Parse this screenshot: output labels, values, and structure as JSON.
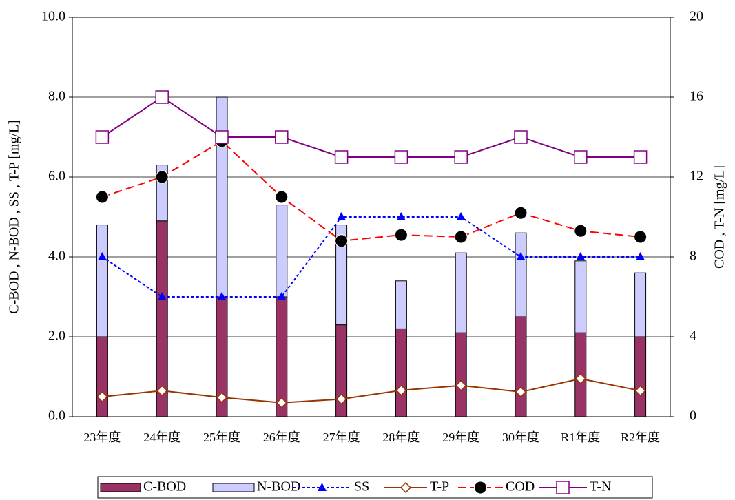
{
  "chart_data": {
    "type": "bar",
    "categories": [
      "23年度",
      "24年度",
      "25年度",
      "26年度",
      "27年度",
      "28年度",
      "29年度",
      "30年度",
      "R1年度",
      "R2年度"
    ],
    "ylabel": "C-BOD , N-BOD , SS , T-P [mg/L]",
    "y2label": "COD , T-N [mg/L]",
    "ylim": [
      0,
      10
    ],
    "yticks": [
      {
        "value": 0,
        "label": "0.0"
      },
      {
        "value": 2,
        "label": "2.0"
      },
      {
        "value": 4,
        "label": "4.0"
      },
      {
        "value": 6,
        "label": "6.0"
      },
      {
        "value": 8,
        "label": "8.0"
      },
      {
        "value": 10,
        "label": "10.0"
      }
    ],
    "y2lim": [
      0,
      20
    ],
    "y2ticks": [
      0,
      4,
      8,
      12,
      16,
      20
    ],
    "grid": true,
    "legend": "bottom",
    "series": [
      {
        "name": "C-BOD",
        "type": "bar",
        "color": "#993366",
        "values": [
          2.0,
          4.9,
          3.0,
          3.0,
          2.3,
          2.2,
          2.1,
          2.5,
          2.1,
          2.0
        ]
      },
      {
        "name": "N-BOD",
        "type": "bar",
        "color": "#ccccff",
        "values": [
          2.8,
          1.4,
          5.0,
          2.3,
          2.5,
          1.2,
          2.0,
          2.1,
          1.8,
          1.6
        ]
      },
      {
        "name": "SS",
        "type": "line",
        "color": "#0000ff",
        "dash": "4 3",
        "marker": "triangle",
        "values": [
          4.0,
          3.0,
          3.0,
          3.0,
          5.0,
          5.0,
          5.0,
          4.0,
          4.0,
          4.0
        ]
      },
      {
        "name": "T-P",
        "type": "line",
        "color": "#993300",
        "marker": "diamond",
        "values": [
          0.5,
          0.65,
          0.48,
          0.35,
          0.44,
          0.66,
          0.78,
          0.62,
          0.95,
          0.65
        ]
      },
      {
        "name": "COD",
        "type": "line",
        "axis": "y2",
        "color": "#ff0000",
        "dash": "12 6",
        "marker": "circle",
        "values": [
          11.0,
          12.0,
          13.8,
          11.0,
          8.8,
          9.1,
          9.0,
          10.2,
          9.3,
          9.0
        ]
      },
      {
        "name": "T-N",
        "type": "line",
        "axis": "y2",
        "color": "#800080",
        "marker": "square",
        "values": [
          14,
          16,
          14,
          14,
          13,
          13,
          13,
          14,
          13,
          13
        ]
      }
    ]
  }
}
